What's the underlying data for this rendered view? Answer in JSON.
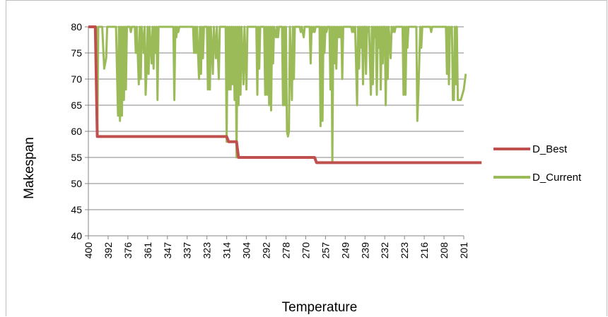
{
  "chart_data": {
    "type": "line",
    "title": "",
    "xlabel": "Temperature",
    "ylabel": "Makespan",
    "ylim": [
      40,
      80
    ],
    "yticks": [
      40,
      45,
      50,
      55,
      60,
      65,
      70,
      75,
      80
    ],
    "x_tick_labels": [
      "400",
      "392",
      "376",
      "361",
      "347",
      "337",
      "323",
      "314",
      "304",
      "292",
      "278",
      "270",
      "257",
      "249",
      "239",
      "232",
      "223",
      "216",
      "208",
      "201"
    ],
    "grid": "horizontal",
    "legend_position": "right",
    "colors": {
      "D_Best": "#c0504d",
      "D_Current": "#9bbb59",
      "grid": "#868686"
    },
    "series": [
      {
        "name": "D_Best",
        "points": [
          [
            0,
            80
          ],
          [
            0.35,
            80
          ],
          [
            0.45,
            59
          ],
          [
            7.0,
            59
          ],
          [
            7.1,
            58
          ],
          [
            7.5,
            58
          ],
          [
            7.6,
            55
          ],
          [
            11.45,
            55
          ],
          [
            11.55,
            54
          ],
          [
            19.9,
            54
          ]
        ]
      },
      {
        "name": "D_Current",
        "points": [
          [
            0,
            80
          ],
          [
            0.4,
            80
          ],
          [
            0.45,
            59
          ],
          [
            0.5,
            80
          ],
          [
            0.7,
            80
          ],
          [
            0.8,
            72
          ],
          [
            0.9,
            74
          ],
          [
            0.95,
            80
          ],
          [
            1.4,
            80
          ],
          [
            1.5,
            63
          ],
          [
            1.55,
            80
          ],
          [
            1.6,
            62
          ],
          [
            1.65,
            80
          ],
          [
            1.7,
            63
          ],
          [
            1.75,
            80
          ],
          [
            1.8,
            66
          ],
          [
            1.85,
            80
          ],
          [
            1.9,
            68
          ],
          [
            1.95,
            80
          ],
          [
            2.1,
            80
          ],
          [
            2.15,
            79
          ],
          [
            2.2,
            80
          ],
          [
            2.35,
            80
          ],
          [
            2.4,
            75
          ],
          [
            2.45,
            80
          ],
          [
            2.55,
            69
          ],
          [
            2.6,
            80
          ],
          [
            2.65,
            70
          ],
          [
            2.7,
            80
          ],
          [
            2.8,
            75
          ],
          [
            2.85,
            80
          ],
          [
            2.9,
            67
          ],
          [
            2.95,
            72
          ],
          [
            3.0,
            80
          ],
          [
            3.05,
            71
          ],
          [
            3.1,
            80
          ],
          [
            3.2,
            73
          ],
          [
            3.25,
            80
          ],
          [
            3.3,
            72
          ],
          [
            3.35,
            80
          ],
          [
            3.4,
            75
          ],
          [
            3.45,
            80
          ],
          [
            3.5,
            66
          ],
          [
            3.55,
            80
          ],
          [
            4.3,
            80
          ],
          [
            4.35,
            66
          ],
          [
            4.4,
            80
          ],
          [
            4.45,
            78
          ],
          [
            4.5,
            80
          ],
          [
            4.55,
            79
          ],
          [
            4.6,
            80
          ],
          [
            5.3,
            80
          ],
          [
            5.35,
            75
          ],
          [
            5.4,
            80
          ],
          [
            5.45,
            75
          ],
          [
            5.5,
            80
          ],
          [
            5.6,
            70
          ],
          [
            5.65,
            80
          ],
          [
            5.7,
            71
          ],
          [
            5.75,
            80
          ],
          [
            5.8,
            74
          ],
          [
            5.85,
            80
          ],
          [
            6.0,
            80
          ],
          [
            6.05,
            68
          ],
          [
            6.1,
            80
          ],
          [
            6.15,
            68
          ],
          [
            6.2,
            80
          ],
          [
            6.3,
            71
          ],
          [
            6.35,
            80
          ],
          [
            6.45,
            74
          ],
          [
            6.5,
            80
          ],
          [
            6.6,
            70
          ],
          [
            6.65,
            80
          ],
          [
            6.95,
            80
          ],
          [
            7.0,
            58
          ],
          [
            7.05,
            80
          ],
          [
            7.1,
            68
          ],
          [
            7.15,
            80
          ],
          [
            7.2,
            68
          ],
          [
            7.25,
            80
          ],
          [
            7.3,
            69
          ],
          [
            7.35,
            80
          ],
          [
            7.4,
            66
          ],
          [
            7.45,
            80
          ],
          [
            7.5,
            55
          ],
          [
            7.55,
            80
          ],
          [
            7.6,
            65
          ],
          [
            7.65,
            80
          ],
          [
            7.7,
            67
          ],
          [
            7.75,
            80
          ],
          [
            7.85,
            69
          ],
          [
            7.9,
            80
          ],
          [
            8.0,
            68
          ],
          [
            8.05,
            80
          ],
          [
            8.5,
            80
          ],
          [
            8.55,
            67
          ],
          [
            8.6,
            80
          ],
          [
            8.65,
            72
          ],
          [
            8.7,
            80
          ],
          [
            8.9,
            80
          ],
          [
            8.95,
            67
          ],
          [
            9.0,
            80
          ],
          [
            9.05,
            67
          ],
          [
            9.1,
            80
          ],
          [
            9.15,
            65
          ],
          [
            9.2,
            80
          ],
          [
            9.25,
            64
          ],
          [
            9.3,
            80
          ],
          [
            9.35,
            73
          ],
          [
            9.4,
            80
          ],
          [
            9.5,
            78
          ],
          [
            9.55,
            80
          ],
          [
            9.6,
            78
          ],
          [
            9.65,
            80
          ],
          [
            9.8,
            80
          ],
          [
            9.85,
            65
          ],
          [
            9.9,
            80
          ],
          [
            9.95,
            65
          ],
          [
            10.0,
            80
          ],
          [
            10.05,
            60
          ],
          [
            10.1,
            59
          ],
          [
            10.15,
            60
          ],
          [
            10.2,
            80
          ],
          [
            10.3,
            66
          ],
          [
            10.35,
            80
          ],
          [
            10.4,
            70
          ],
          [
            10.45,
            80
          ],
          [
            10.7,
            80
          ],
          [
            10.75,
            79
          ],
          [
            10.8,
            80
          ],
          [
            10.9,
            78
          ],
          [
            10.95,
            80
          ],
          [
            11.2,
            80
          ],
          [
            11.25,
            73
          ],
          [
            11.3,
            80
          ],
          [
            11.35,
            79
          ],
          [
            11.4,
            80
          ],
          [
            11.45,
            79
          ],
          [
            11.5,
            80
          ],
          [
            11.7,
            80
          ],
          [
            11.75,
            61
          ],
          [
            11.8,
            80
          ],
          [
            11.85,
            62
          ],
          [
            11.9,
            80
          ],
          [
            11.95,
            75
          ],
          [
            12.0,
            80
          ],
          [
            12.05,
            79
          ],
          [
            12.1,
            80
          ],
          [
            12.2,
            80
          ],
          [
            12.25,
            68
          ],
          [
            12.3,
            80
          ],
          [
            12.35,
            54
          ],
          [
            12.4,
            80
          ],
          [
            12.45,
            73
          ],
          [
            12.5,
            80
          ],
          [
            12.55,
            72
          ],
          [
            12.6,
            80
          ],
          [
            12.65,
            78
          ],
          [
            12.7,
            80
          ],
          [
            12.75,
            78
          ],
          [
            12.8,
            80
          ],
          [
            12.85,
            70
          ],
          [
            12.9,
            80
          ],
          [
            13.3,
            80
          ],
          [
            13.35,
            79
          ],
          [
            13.4,
            80
          ],
          [
            13.45,
            79
          ],
          [
            13.5,
            80
          ],
          [
            13.6,
            65
          ],
          [
            13.65,
            80
          ],
          [
            13.7,
            72
          ],
          [
            13.75,
            80
          ],
          [
            13.8,
            76
          ],
          [
            13.85,
            80
          ],
          [
            13.9,
            69
          ],
          [
            13.95,
            80
          ],
          [
            14.0,
            80
          ],
          [
            14.05,
            71
          ],
          [
            14.1,
            80
          ],
          [
            14.15,
            79
          ],
          [
            14.2,
            80
          ],
          [
            14.3,
            67
          ],
          [
            14.35,
            80
          ],
          [
            14.4,
            69
          ],
          [
            14.45,
            80
          ],
          [
            14.5,
            78
          ],
          [
            14.55,
            80
          ],
          [
            14.6,
            67
          ],
          [
            14.65,
            80
          ],
          [
            14.7,
            76
          ],
          [
            14.75,
            80
          ],
          [
            14.8,
            68
          ],
          [
            14.85,
            80
          ],
          [
            14.9,
            73
          ],
          [
            14.95,
            80
          ],
          [
            15.0,
            80
          ],
          [
            15.05,
            65
          ],
          [
            15.1,
            80
          ],
          [
            15.15,
            70
          ],
          [
            15.2,
            80
          ],
          [
            15.3,
            74
          ],
          [
            15.35,
            80
          ],
          [
            15.4,
            79
          ],
          [
            15.45,
            80
          ],
          [
            15.5,
            79
          ],
          [
            15.55,
            80
          ],
          [
            15.9,
            80
          ],
          [
            15.95,
            67
          ],
          [
            16.0,
            80
          ],
          [
            16.05,
            67
          ],
          [
            16.1,
            80
          ],
          [
            16.15,
            76
          ],
          [
            16.2,
            80
          ],
          [
            16.6,
            80
          ],
          [
            16.65,
            62
          ],
          [
            16.7,
            67
          ],
          [
            16.8,
            80
          ],
          [
            16.85,
            76
          ],
          [
            16.9,
            80
          ],
          [
            17.3,
            80
          ],
          [
            17.35,
            79
          ],
          [
            17.4,
            80
          ],
          [
            18.1,
            80
          ],
          [
            18.15,
            71
          ],
          [
            18.2,
            80
          ],
          [
            18.25,
            69
          ],
          [
            18.3,
            80
          ],
          [
            18.35,
            79
          ],
          [
            18.4,
            80
          ],
          [
            18.45,
            66
          ],
          [
            18.5,
            66
          ],
          [
            18.55,
            80
          ],
          [
            18.6,
            69
          ],
          [
            18.65,
            80
          ],
          [
            18.7,
            66
          ],
          [
            18.85,
            66
          ],
          [
            19.0,
            68
          ],
          [
            19.1,
            71
          ]
        ]
      }
    ]
  }
}
